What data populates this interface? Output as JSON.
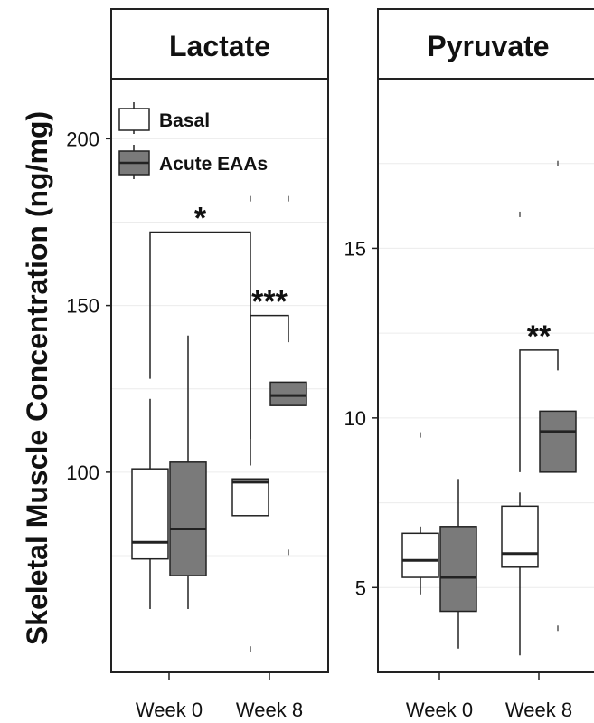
{
  "y_axis_label": "Skeletal Muscle  Concentration (ng/mg)",
  "legend": [
    {
      "label": "Basal",
      "color": "#ffffff"
    },
    {
      "label": "Acute EAAs",
      "color": "#7a7a7a"
    }
  ],
  "colors": {
    "basal": "#ffffff",
    "acute": "#7a7a7a",
    "grid": "#ececec",
    "ink": "#222222"
  },
  "chart_data": [
    {
      "type": "boxplot",
      "title": "Lactate",
      "categories": [
        "Week 0",
        "Week 8"
      ],
      "yticks": [
        100,
        150,
        200
      ],
      "ylim": [
        40,
        218
      ],
      "series": [
        {
          "name": "Basal",
          "boxes": [
            {
              "category": "Week 0",
              "min": 59,
              "q1": 74,
              "median": 79,
              "q3": 101,
              "max": 122,
              "outliers": []
            },
            {
              "category": "Week 8",
              "min": 87,
              "q1": 87,
              "median": 97,
              "q3": 98,
              "max": 98,
              "outliers": [
                47,
                182
              ]
            }
          ]
        },
        {
          "name": "Acute EAAs",
          "boxes": [
            {
              "category": "Week 0",
              "min": 59,
              "q1": 69,
              "median": 83,
              "q3": 103,
              "max": 141,
              "outliers": []
            },
            {
              "category": "Week 8",
              "min": 120,
              "q1": 120,
              "median": 123,
              "q3": 127,
              "max": 127,
              "outliers": [
                76,
                182
              ]
            }
          ]
        }
      ],
      "significance": [
        {
          "label": "*",
          "from": "Week 0 Basal",
          "to": "Week 8 Basal"
        },
        {
          "label": "***",
          "from": "Week 8 Basal",
          "to": "Week 8 Acute EAAs"
        }
      ]
    },
    {
      "type": "boxplot",
      "title": "Pyruvate",
      "categories": [
        "Week 0",
        "Week 8"
      ],
      "yticks": [
        5,
        10,
        15
      ],
      "ylim": [
        2.5,
        20
      ],
      "series": [
        {
          "name": "Basal",
          "boxes": [
            {
              "category": "Week 0",
              "min": 4.8,
              "q1": 5.3,
              "median": 5.8,
              "q3": 6.6,
              "max": 6.8,
              "outliers": [
                9.5
              ]
            },
            {
              "category": "Week 8",
              "min": 3.0,
              "q1": 5.6,
              "median": 6.0,
              "q3": 7.4,
              "max": 7.8,
              "outliers": [
                16.0
              ]
            }
          ]
        },
        {
          "name": "Acute EAAs",
          "boxes": [
            {
              "category": "Week 0",
              "min": 3.2,
              "q1": 4.3,
              "median": 5.3,
              "q3": 6.8,
              "max": 8.2,
              "outliers": []
            },
            {
              "category": "Week 8",
              "min": 8.4,
              "q1": 8.4,
              "median": 9.6,
              "q3": 10.2,
              "max": 10.2,
              "outliers": [
                3.8,
                17.5
              ]
            }
          ]
        }
      ],
      "significance": [
        {
          "label": "**",
          "from": "Week 8 Basal",
          "to": "Week 8 Acute EAAs"
        }
      ]
    }
  ]
}
